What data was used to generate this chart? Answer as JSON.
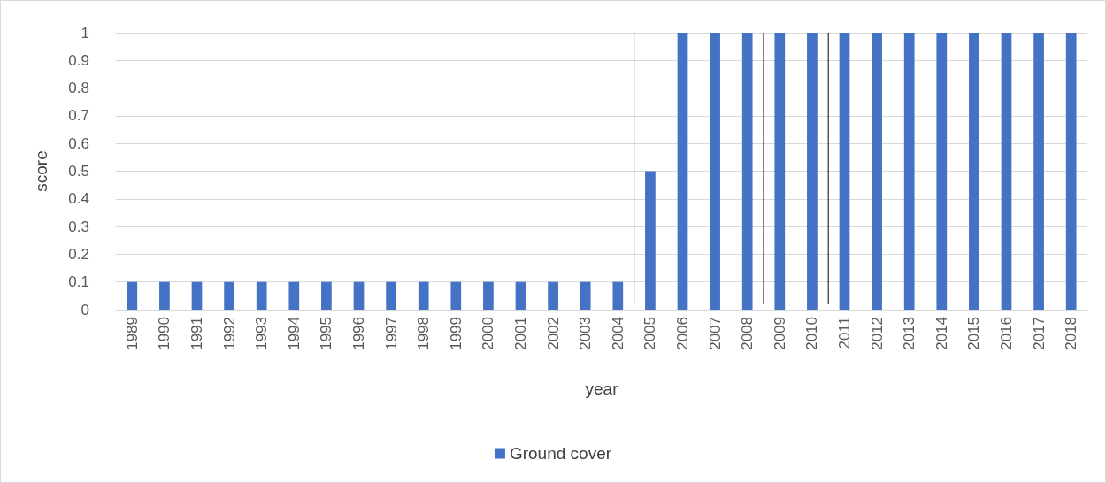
{
  "chart_data": {
    "type": "bar",
    "xlabel": "year",
    "ylabel": "score",
    "categories": [
      "1989",
      "1990",
      "1991",
      "1992",
      "1993",
      "1994",
      "1995",
      "1996",
      "1997",
      "1998",
      "1999",
      "2000",
      "2001",
      "2002",
      "2003",
      "2004",
      "2005",
      "2006",
      "2007",
      "2008",
      "2009",
      "2010",
      "2011",
      "2012",
      "2013",
      "2014",
      "2015",
      "2016",
      "2017",
      "2018"
    ],
    "series": [
      {
        "name": "Ground cover",
        "color": "#4472c4",
        "values": [
          0.1,
          0.1,
          0.1,
          0.1,
          0.1,
          0.1,
          0.1,
          0.1,
          0.1,
          0.1,
          0.1,
          0.1,
          0.1,
          0.1,
          0.1,
          0.1,
          0.5,
          1,
          1,
          1,
          1,
          1,
          1,
          1,
          1,
          1,
          1,
          1,
          1,
          1
        ]
      }
    ],
    "ylim": [
      0,
      1
    ],
    "yticks": [
      0,
      0.1,
      0.2,
      0.3,
      0.4,
      0.5,
      0.6,
      0.7,
      0.8,
      0.9,
      1
    ],
    "grid": "y",
    "legend": "bottom"
  }
}
